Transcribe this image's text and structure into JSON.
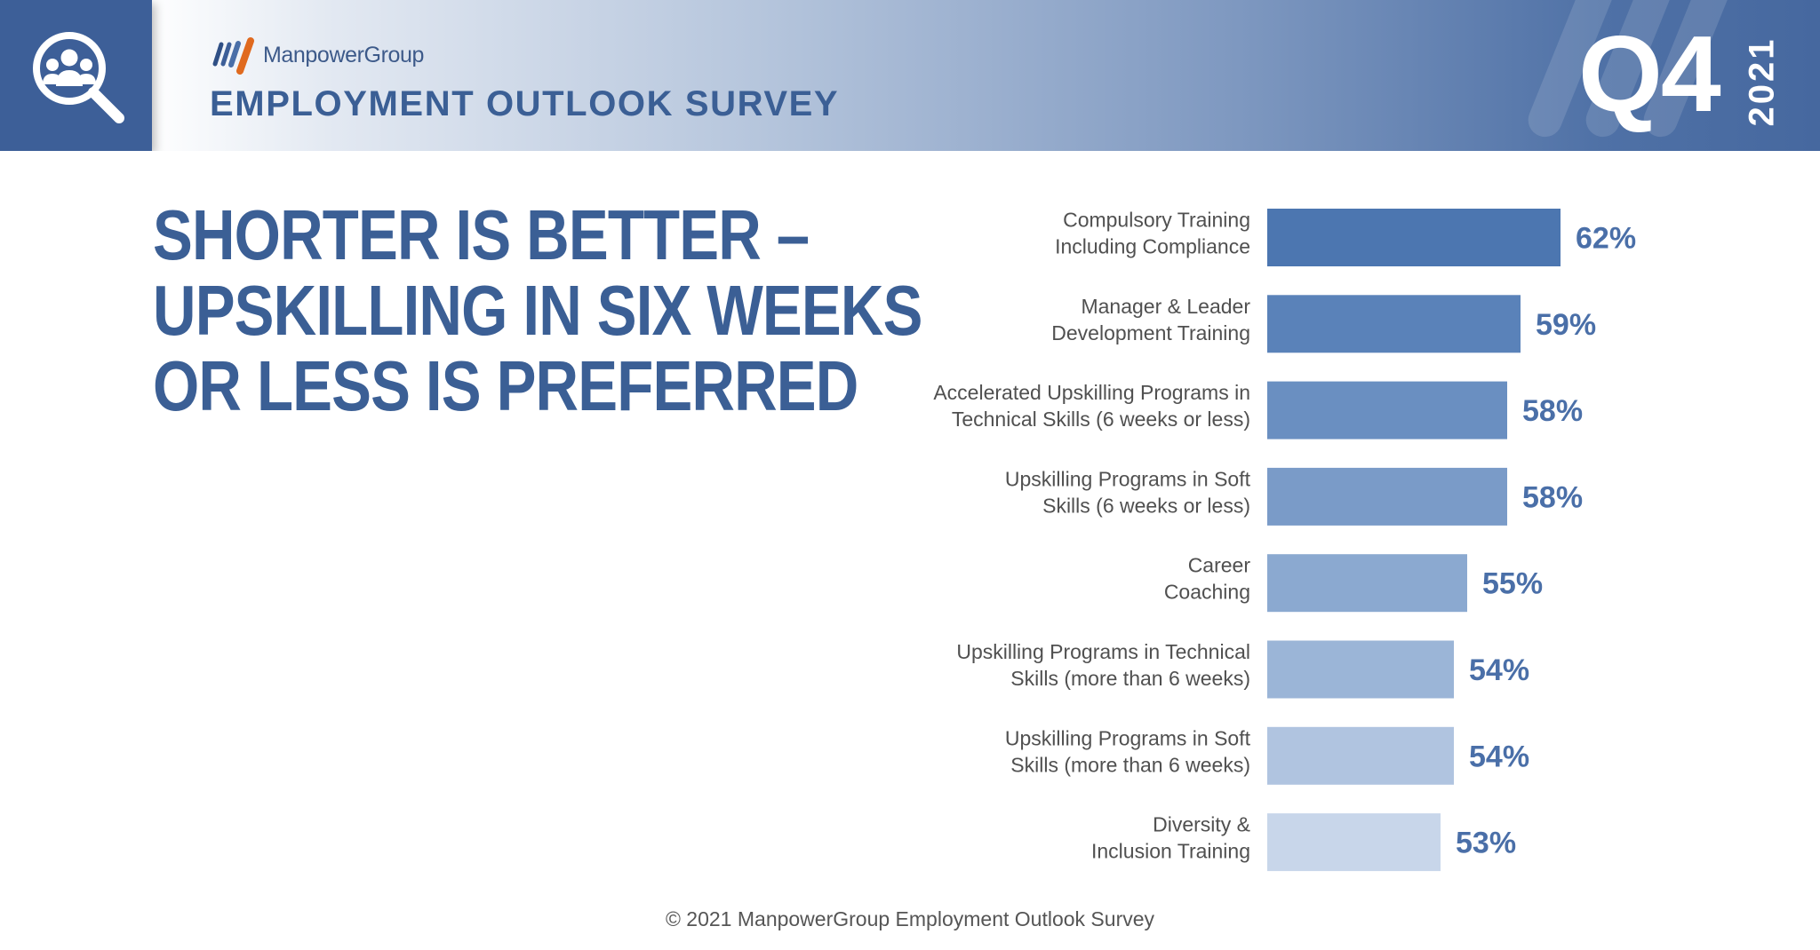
{
  "header": {
    "brand": "ManpowerGroup",
    "survey_title": "EMPLOYMENT OUTLOOK SURVEY",
    "quarter": "Q4",
    "year": "2021",
    "icon": "magnifier-people-icon"
  },
  "headline": {
    "lines": [
      "SHORTER IS BETTER –",
      "UPSKILLING IN SIX WEEKS",
      "OR LESS IS PREFERRED"
    ]
  },
  "footer": "© 2021 ManpowerGroup Employment Outlook Survey",
  "colors": {
    "header_dark": "#3d5f98",
    "title_blue": "#3b5f95",
    "value_label": "#4a6fa8",
    "bar_colors": [
      "#4c76b0",
      "#5a82b9",
      "#6a8fc1",
      "#7a9bc8",
      "#8ba9d0",
      "#9bb5d7",
      "#b0c4e0",
      "#c8d6ea"
    ]
  },
  "chart_data": {
    "type": "bar",
    "orientation": "horizontal",
    "categories": [
      [
        "Compulsory Training",
        "Including Compliance"
      ],
      [
        "Manager & Leader",
        "Development Training"
      ],
      [
        "Accelerated Upskilling Programs in",
        "Technical Skills (6 weeks or less)"
      ],
      [
        "Upskilling Programs in Soft",
        "Skills (6 weeks or less)"
      ],
      [
        "Career",
        "Coaching"
      ],
      [
        "Upskilling Programs in Technical",
        "Skills (more than 6 weeks)"
      ],
      [
        "Upskilling Programs in Soft",
        "Skills (more than 6 weeks)"
      ],
      [
        "Diversity &",
        "Inclusion Training"
      ]
    ],
    "values": [
      62,
      59,
      58,
      58,
      55,
      54,
      54,
      53
    ],
    "value_labels": [
      "62%",
      "59%",
      "58%",
      "58%",
      "55%",
      "54%",
      "54%",
      "53%"
    ],
    "xlim": [
      40,
      62
    ],
    "grid": false,
    "title": "",
    "xlabel": "",
    "ylabel": ""
  }
}
